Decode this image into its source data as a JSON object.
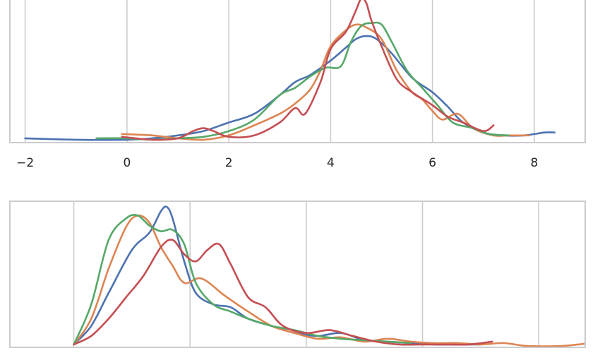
{
  "chart_data": [
    {
      "type": "line",
      "title": "",
      "xlabel": "",
      "ylabel": "",
      "xlim": [
        -2.3,
        9.0
      ],
      "ylim": [
        0,
        1.02
      ],
      "xticks": [
        -2,
        0,
        2,
        4,
        6,
        8
      ],
      "xtick_labels": [
        "−2",
        "0",
        "2",
        "4",
        "6",
        "8"
      ],
      "grid": "vertical",
      "y_axis_visible": false,
      "series": [
        {
          "color": "#4c72b0",
          "x": [
            -2,
            -1,
            0,
            0.5,
            1,
            1.5,
            2,
            2.5,
            3,
            3.3,
            3.6,
            4,
            4.3,
            4.5,
            4.7,
            4.9,
            5.2,
            5.6,
            6,
            6.3,
            6.6,
            7,
            7.4,
            7.8,
            8.2,
            8.4
          ],
          "y": [
            0.03,
            0.02,
            0.02,
            0.03,
            0.05,
            0.08,
            0.14,
            0.2,
            0.33,
            0.42,
            0.47,
            0.57,
            0.66,
            0.72,
            0.74,
            0.72,
            0.62,
            0.45,
            0.35,
            0.25,
            0.14,
            0.07,
            0.05,
            0.05,
            0.07,
            0.07
          ]
        },
        {
          "color": "#dd8452",
          "x": [
            -0.1,
            0.5,
            1,
            1.5,
            2,
            2.5,
            3,
            3.3,
            3.6,
            3.8,
            4,
            4.3,
            4.5,
            4.7,
            5,
            5.3,
            5.6,
            5.8,
            6,
            6.2,
            6.5,
            6.8,
            7.2,
            7.5,
            7.9
          ],
          "y": [
            0.06,
            0.05,
            0.03,
            0.02,
            0.05,
            0.12,
            0.2,
            0.27,
            0.37,
            0.5,
            0.67,
            0.78,
            0.82,
            0.8,
            0.72,
            0.5,
            0.35,
            0.3,
            0.22,
            0.16,
            0.2,
            0.1,
            0.05,
            0.05,
            0.05
          ]
        },
        {
          "color": "#55a868",
          "x": [
            -0.6,
            0,
            0.5,
            1,
            1.5,
            2,
            2.5,
            3,
            3.3,
            3.6,
            3.9,
            4.2,
            4.4,
            4.6,
            4.8,
            5,
            5.2,
            5.5,
            5.8,
            6.1,
            6.4,
            6.8,
            7.1,
            7.5
          ],
          "y": [
            0.03,
            0.03,
            0.02,
            0.03,
            0.04,
            0.08,
            0.16,
            0.33,
            0.38,
            0.46,
            0.52,
            0.53,
            0.7,
            0.81,
            0.83,
            0.82,
            0.7,
            0.5,
            0.38,
            0.26,
            0.14,
            0.1,
            0.06,
            0.05
          ]
        },
        {
          "color": "#c44e52",
          "x": [
            -0.1,
            0.5,
            1,
            1.3,
            1.5,
            1.7,
            2,
            2.5,
            3,
            3.3,
            3.5,
            3.8,
            4,
            4.3,
            4.5,
            4.6,
            4.7,
            4.8,
            5,
            5.3,
            5.6,
            6,
            6.3,
            6.6,
            7,
            7.2
          ],
          "y": [
            0.04,
            0.02,
            0.03,
            0.08,
            0.1,
            0.08,
            0.04,
            0.05,
            0.14,
            0.24,
            0.2,
            0.42,
            0.65,
            0.77,
            0.92,
            1.0,
            0.97,
            0.85,
            0.67,
            0.44,
            0.35,
            0.26,
            0.18,
            0.14,
            0.08,
            0.12
          ]
        }
      ]
    },
    {
      "type": "line",
      "title": "",
      "xlabel": "",
      "ylabel": "",
      "xlim": [
        -0.55,
        4.4
      ],
      "ylim": [
        0,
        1.02
      ],
      "xticks": [
        0,
        1,
        2,
        3,
        4
      ],
      "grid": "vertical",
      "y_axis_visible": false,
      "series": [
        {
          "color": "#4c72b0",
          "x": [
            0,
            0.15,
            0.3,
            0.5,
            0.65,
            0.75,
            0.8,
            0.85,
            0.95,
            1.05,
            1.2,
            1.35,
            1.5,
            1.7,
            1.9,
            2.1,
            2.3,
            2.5,
            2.7,
            2.9,
            3.1,
            3.3,
            3.5
          ],
          "y": [
            0.02,
            0.15,
            0.38,
            0.68,
            0.8,
            0.95,
            0.98,
            0.9,
            0.6,
            0.38,
            0.3,
            0.28,
            0.2,
            0.15,
            0.1,
            0.08,
            0.1,
            0.05,
            0.04,
            0.03,
            0.02,
            0.02,
            0.02
          ]
        },
        {
          "color": "#dd8452",
          "x": [
            0,
            0.15,
            0.3,
            0.45,
            0.55,
            0.65,
            0.75,
            0.85,
            0.95,
            1.1,
            1.3,
            1.5,
            1.7,
            1.9,
            2.1,
            2.3,
            2.5,
            2.7,
            2.9,
            3.1,
            3.3,
            3.5,
            3.7,
            3.9,
            4.2,
            4.45
          ],
          "y": [
            0.02,
            0.2,
            0.55,
            0.84,
            0.92,
            0.87,
            0.7,
            0.57,
            0.45,
            0.48,
            0.36,
            0.25,
            0.15,
            0.1,
            0.06,
            0.07,
            0.04,
            0.06,
            0.04,
            0.03,
            0.03,
            0.02,
            0.03,
            0.01,
            0.01,
            0.03
          ]
        },
        {
          "color": "#55a868",
          "x": [
            0,
            0.15,
            0.3,
            0.45,
            0.55,
            0.65,
            0.75,
            0.85,
            0.95,
            1.05,
            1.2,
            1.35,
            1.5,
            1.7,
            1.9,
            2.1,
            2.3,
            2.5,
            2.7,
            2.9
          ],
          "y": [
            0.02,
            0.3,
            0.75,
            0.9,
            0.92,
            0.85,
            0.81,
            0.82,
            0.72,
            0.45,
            0.3,
            0.25,
            0.2,
            0.15,
            0.12,
            0.08,
            0.06,
            0.05,
            0.04,
            0.03
          ]
        },
        {
          "color": "#c44e52",
          "x": [
            0,
            0.15,
            0.3,
            0.45,
            0.6,
            0.75,
            0.85,
            0.95,
            1.05,
            1.15,
            1.25,
            1.35,
            1.5,
            1.65,
            1.8,
            2,
            2.2,
            2.4,
            2.6,
            2.8,
            3,
            3.2,
            3.4,
            3.6
          ],
          "y": [
            0.02,
            0.08,
            0.2,
            0.35,
            0.5,
            0.7,
            0.75,
            0.65,
            0.6,
            0.68,
            0.72,
            0.58,
            0.35,
            0.28,
            0.15,
            0.1,
            0.12,
            0.08,
            0.04,
            0.02,
            0.02,
            0.02,
            0.02,
            0.04
          ]
        }
      ]
    }
  ]
}
